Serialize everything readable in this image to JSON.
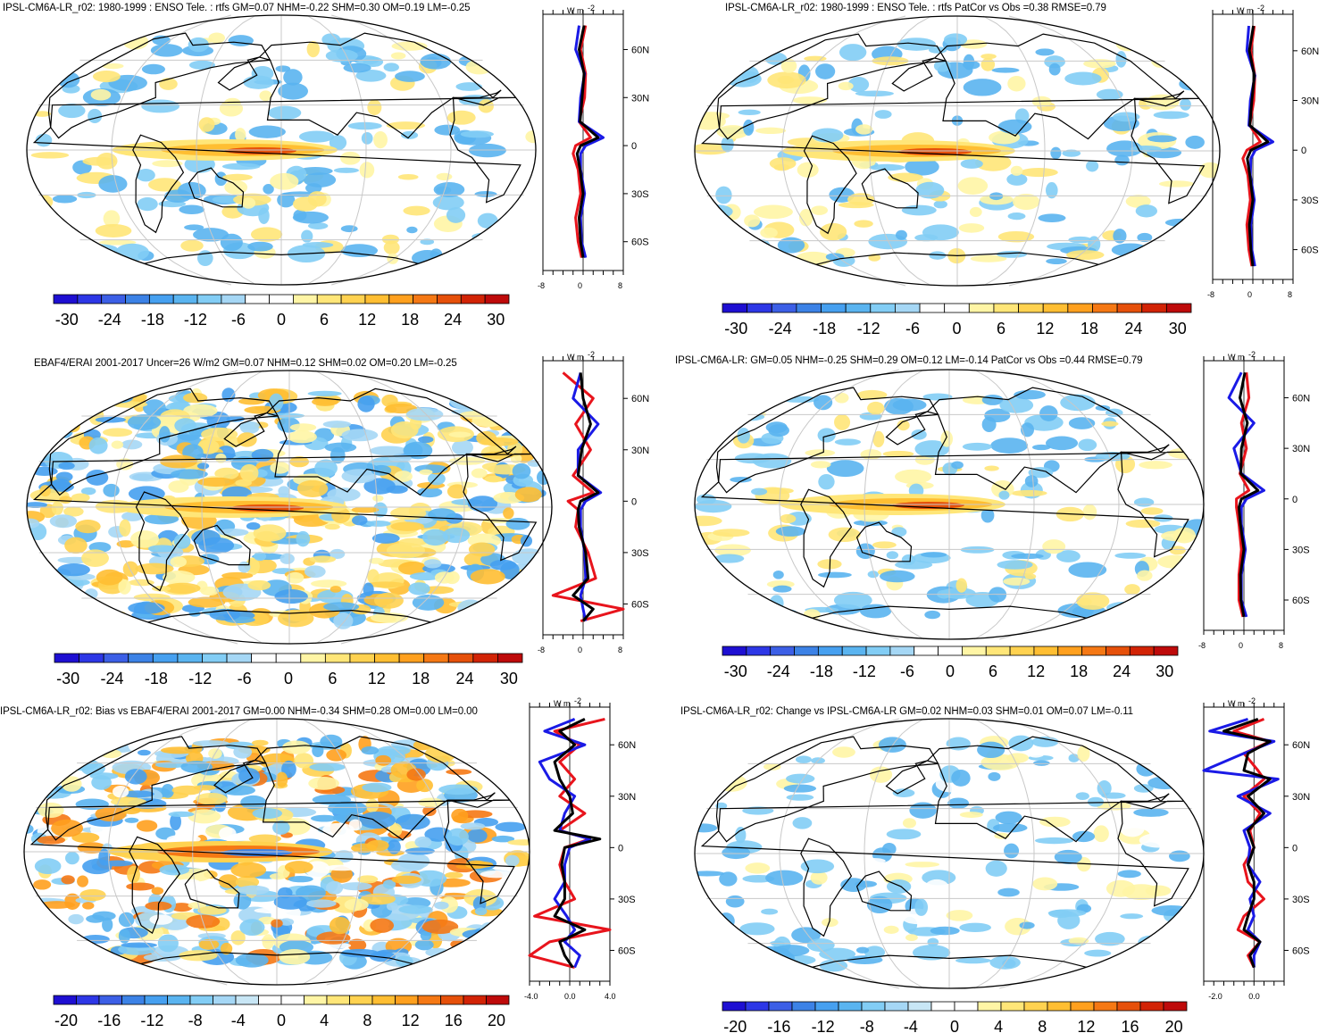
{
  "figure": {
    "units_label": "W m",
    "units_exp": "-2",
    "lat_labels": [
      "60N",
      "30N",
      "0",
      "30S",
      "60S"
    ],
    "lat_values": [
      60,
      30,
      0,
      -30,
      -60
    ],
    "colors": {
      "land_outline": "#000000",
      "grid": "#c8c8c8",
      "zonal_model": "#e8141c",
      "zonal_obs": "#1a1ae6",
      "zonal_ref": "#000000"
    },
    "palette_1": [
      "#1e0fd2",
      "#2d37e6",
      "#3c5fe6",
      "#3c82e6",
      "#46a0f0",
      "#5ab4f0",
      "#82cdf5",
      "#a5d7f5",
      "#ffffff",
      "#ffffff",
      "#fff5a5",
      "#ffe678",
      "#ffd250",
      "#ffbe32",
      "#ffa01e",
      "#f57814",
      "#e6500a",
      "#d22305",
      "#be0a0a"
    ],
    "palette_2": [
      "#1e0fd2",
      "#2d37e6",
      "#3c5fe6",
      "#3c82e6",
      "#46a0f0",
      "#5ab4f0",
      "#82cdf5",
      "#a5d7f5",
      "#c8e6f5",
      "#ffffff",
      "#ffffff",
      "#fff5a5",
      "#ffe678",
      "#ffd250",
      "#ffbe32",
      "#ffa01e",
      "#f57814",
      "#e6500a",
      "#d22305",
      "#be0a0a"
    ]
  },
  "panels": [
    {
      "id": "p1",
      "title": "IPSL-CM6A-LR_r02: 1980-1999 : ENSO Tele. : rtfs GM=0.07 NHM=-0.22 SHM=0.30 OM=0.19 LM=-0.25",
      "colorbar_labels": [
        "-30",
        "-24",
        "-18",
        "-12",
        "-6",
        "0",
        "6",
        "12",
        "18",
        "24",
        "30"
      ],
      "side_xticks": [
        "-8",
        "0",
        "8"
      ],
      "chart_data": {
        "type": "heatmap",
        "title": "IPSL-CM6A-LR_r02: 1980-1999 : ENSO Tele. : rtfs GM=0.07 NHM=-0.22 SHM=0.30 OM=0.19 LM=-0.25",
        "colorbar_range": [
          -30,
          30
        ],
        "zonal_mean_xlim": [
          -8,
          8
        ],
        "zonal_mean_lat": [
          75,
          60,
          45,
          30,
          15,
          5,
          0,
          -5,
          -15,
          -30,
          -45,
          -60,
          -70
        ],
        "zonal_mean_model": [
          0.5,
          -0.5,
          0.5,
          0.3,
          -0.8,
          1.5,
          -1.5,
          -2.0,
          -1.0,
          -0.5,
          -1.5,
          -1.0,
          -0.3
        ],
        "zonal_mean_obs": [
          -0.8,
          -1.5,
          0.3,
          -0.5,
          -0.8,
          4.0,
          0.5,
          -0.5,
          -0.5,
          0.3,
          -0.5,
          -0.3,
          0.5
        ],
        "zonal_mean_ref": [
          0.2,
          -0.8,
          0.2,
          -0.2,
          -0.6,
          3.0,
          -0.5,
          -1.2,
          -0.6,
          0.0,
          -0.8,
          -0.5,
          0.0
        ]
      }
    },
    {
      "id": "p2",
      "title": "IPSL-CM6A-LR_r02: 1980-1999 : ENSO Tele. : rtfs PatCor vs Obs =0.38 RMSE=0.79",
      "colorbar_labels": [
        "-30",
        "-24",
        "-18",
        "-12",
        "-6",
        "0",
        "6",
        "12",
        "18",
        "24",
        "30"
      ],
      "side_xticks": [
        "-8",
        "0",
        "8"
      ],
      "chart_data": {
        "type": "heatmap",
        "title": "IPSL-CM6A-LR_r02: 1980-1999 : ENSO Tele. : rtfs PatCor vs Obs =0.38 RMSE=0.79",
        "colorbar_range": [
          -30,
          30
        ],
        "zonal_mean_xlim": [
          -8,
          8
        ],
        "zonal_mean_lat": [
          75,
          60,
          45,
          30,
          15,
          5,
          0,
          -5,
          -15,
          -30,
          -45,
          -60,
          -70
        ],
        "zonal_mean_model": [
          0.3,
          -0.4,
          0.4,
          0.2,
          -0.6,
          1.5,
          -1.2,
          -2.0,
          -1.0,
          -0.5,
          -1.2,
          -0.8,
          -0.2
        ],
        "zonal_mean_obs": [
          -0.8,
          -1.2,
          0.4,
          -0.5,
          -0.8,
          4.0,
          0.5,
          -0.4,
          -0.5,
          0.3,
          -0.4,
          -0.2,
          0.4
        ],
        "zonal_mean_ref": [
          0.1,
          -0.7,
          0.3,
          -0.2,
          -0.6,
          3.0,
          -0.4,
          -1.1,
          -0.6,
          0.0,
          -0.7,
          -0.4,
          0.0
        ]
      }
    },
    {
      "id": "p3",
      "title": "EBAF4/ERAI 2001-2017 Uncer=26 W/m2 GM=0.07 NHM=0.12 SHM=0.02 OM=0.20 LM=-0.25",
      "colorbar_labels": [
        "-30",
        "-24",
        "-18",
        "-12",
        "-6",
        "0",
        "6",
        "12",
        "18",
        "24",
        "30"
      ],
      "side_xticks": [
        "-8",
        "0",
        "8"
      ],
      "chart_data": {
        "type": "heatmap",
        "title": "EBAF4/ERAI 2001-2017 Uncer=26 W/m2 GM=0.07 NHM=0.12 SHM=0.02 OM=0.20 LM=-0.25",
        "colorbar_range": [
          -30,
          30
        ],
        "zonal_mean_xlim": [
          -8,
          8
        ],
        "zonal_mean_lat": [
          75,
          60,
          45,
          30,
          15,
          5,
          0,
          -5,
          -15,
          -30,
          -45,
          -55,
          -63,
          -70
        ],
        "zonal_mean_model": [
          -4.0,
          2.0,
          -1.5,
          1.5,
          -2.0,
          2.0,
          -3.0,
          -1.0,
          -1.5,
          1.0,
          2.5,
          -6.0,
          8.0,
          -0.5
        ],
        "zonal_mean_obs": [
          -0.5,
          -2.0,
          3.0,
          -1.0,
          -1.0,
          3.5,
          0.5,
          -0.5,
          -0.5,
          0.3,
          0.5,
          -0.5,
          0.0,
          0.5
        ],
        "zonal_mean_ref": [
          -0.5,
          0.0,
          1.5,
          -0.3,
          -1.0,
          3.0,
          -0.5,
          -1.0,
          -0.8,
          0.5,
          1.0,
          -2.0,
          2.0,
          0.0
        ]
      }
    },
    {
      "id": "p4",
      "title": "IPSL-CM6A-LR: GM=0.05 NHM=-0.25 SHM=0.29 OM=0.12 LM=-0.14 PatCor vs Obs =0.44 RMSE=0.79",
      "colorbar_labels": [
        "-30",
        "-24",
        "-18",
        "-12",
        "-6",
        "0",
        "6",
        "12",
        "18",
        "24",
        "30"
      ],
      "side_xticks": [
        "-8",
        "0",
        "8"
      ],
      "chart_data": {
        "type": "heatmap",
        "title": "IPSL-CM6A-LR: GM=0.05 NHM=-0.25 SHM=0.29 OM=0.12 LM=-0.14 PatCor vs Obs =0.44 RMSE=0.79",
        "colorbar_range": [
          -30,
          30
        ],
        "zonal_mean_xlim": [
          -8,
          8
        ],
        "zonal_mean_lat": [
          75,
          60,
          45,
          30,
          15,
          5,
          0,
          -5,
          -15,
          -30,
          -45,
          -60,
          -70
        ],
        "zonal_mean_model": [
          0.5,
          1.0,
          -0.5,
          0.5,
          -0.8,
          1.0,
          -1.5,
          -1.5,
          -1.0,
          -0.5,
          -1.0,
          -1.0,
          -0.2
        ],
        "zonal_mean_obs": [
          -0.5,
          -3.0,
          2.0,
          -2.0,
          -0.5,
          4.0,
          0.5,
          -0.5,
          -0.5,
          0.3,
          -0.5,
          -0.5,
          0.5
        ],
        "zonal_mean_ref": [
          0.2,
          -0.8,
          0.7,
          -0.5,
          -0.6,
          2.8,
          -0.5,
          -1.0,
          -0.7,
          0.0,
          -0.7,
          -0.6,
          0.0
        ]
      }
    },
    {
      "id": "p5",
      "title": "IPSL-CM6A-LR_r02: Bias vs EBAF4/ERAI 2001-2017 GM=0.00 NHM=-0.34 SHM=0.28 OM=0.00 LM=0.00",
      "colorbar_labels": [
        "-20",
        "-16",
        "-12",
        "-8",
        "-4",
        "0",
        "4",
        "8",
        "12",
        "16",
        "20"
      ],
      "side_xticks": [
        "-4.0",
        "0.0",
        "4.0"
      ],
      "chart_data": {
        "type": "heatmap",
        "title": "IPSL-CM6A-LR_r02: Bias vs EBAF4/ERAI 2001-2017 GM=0.00 NHM=-0.34 SHM=0.28 OM=0.00 LM=0.00",
        "colorbar_range": [
          -20,
          20
        ],
        "zonal_mean_xlim": [
          -4,
          4
        ],
        "zonal_mean_lat": [
          75,
          68,
          60,
          50,
          40,
          30,
          20,
          10,
          5,
          0,
          -10,
          -20,
          -30,
          -40,
          -48,
          -55,
          -63,
          -70
        ],
        "zonal_mean_model": [
          3.5,
          -1.5,
          1.0,
          -1.0,
          0.5,
          -1.0,
          1.5,
          -1.0,
          2.0,
          -0.5,
          -1.0,
          -0.5,
          0.5,
          -3.5,
          4.0,
          -2.0,
          -4.0,
          0.5
        ],
        "zonal_mean_obs": [
          0.5,
          -2.5,
          1.5,
          -3.0,
          -2.0,
          0.5,
          -0.5,
          -1.0,
          2.0,
          0.0,
          -0.5,
          -0.5,
          -1.5,
          -0.3,
          0.5,
          -0.5,
          1.0,
          0.5
        ],
        "zonal_mean_ref": [
          1.5,
          -1.0,
          0.5,
          -1.5,
          -1.0,
          0.0,
          0.3,
          -1.5,
          3.0,
          -0.5,
          -0.8,
          -0.5,
          -0.5,
          -1.5,
          1.5,
          -1.0,
          -0.5,
          0.3
        ]
      }
    },
    {
      "id": "p6",
      "title": "IPSL-CM6A-LR_r02: Change vs IPSL-CM6A-LR GM=0.02 NHM=0.03 SHM=0.01 OM=0.07 LM=-0.11",
      "colorbar_labels": [
        "-20",
        "-16",
        "-12",
        "-8",
        "-4",
        "0",
        "4",
        "8",
        "12",
        "16",
        "20"
      ],
      "side_xticks": [
        "-2.0",
        "0.0"
      ],
      "chart_data": {
        "type": "heatmap",
        "title": "IPSL-CM6A-LR_r02: Change vs IPSL-CM6A-LR GM=0.02 NHM=0.03 SHM=0.01 OM=0.07 LM=-0.11",
        "colorbar_range": [
          -20,
          20
        ],
        "zonal_mean_xlim": [
          -2.5,
          1.5
        ],
        "zonal_mean_lat": [
          75,
          68,
          62,
          55,
          45,
          40,
          30,
          20,
          10,
          0,
          -10,
          -20,
          -30,
          -40,
          -48,
          -55,
          -63,
          -70
        ],
        "zonal_mean_model": [
          0.5,
          -1.0,
          0.8,
          -0.5,
          0.2,
          0.5,
          -0.5,
          0.3,
          -0.2,
          0.0,
          -0.5,
          -0.3,
          0.5,
          -0.5,
          -0.8,
          0.3,
          -0.3,
          0.0
        ],
        "zonal_mean_obs": [
          -0.3,
          -2.2,
          1.0,
          -0.5,
          -2.5,
          1.2,
          -0.8,
          0.8,
          -0.5,
          -0.2,
          -0.3,
          0.3,
          -0.2,
          0.0,
          -0.3,
          0.3,
          0.0,
          0.0
        ],
        "zonal_mean_ref": [
          0.2,
          -1.5,
          0.8,
          -0.3,
          -0.5,
          0.8,
          -0.3,
          0.5,
          -0.3,
          0.0,
          -0.3,
          0.0,
          0.0,
          -0.3,
          -0.5,
          0.3,
          -0.2,
          0.0
        ]
      }
    }
  ]
}
